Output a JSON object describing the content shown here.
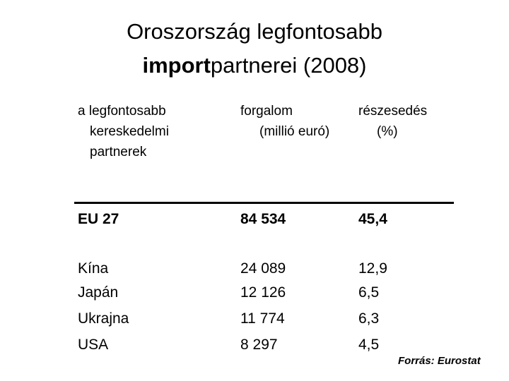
{
  "title": {
    "line1": "Oroszország legfontosabb",
    "line2_bold": "import",
    "line2_rest": "partnerei (2008)"
  },
  "table": {
    "header": [
      [
        "a legfontosabb",
        "kereskedelmi",
        "partnerek"
      ],
      [
        "forgalom",
        "(millió euró)"
      ],
      [
        "részesedés",
        "(%)"
      ]
    ],
    "rows": [
      [
        "EU 27",
        "84 534",
        "45,4"
      ],
      [
        "Kína",
        "24 089",
        "12,9"
      ],
      [
        "Japán",
        "12 126",
        "6,5"
      ],
      [
        "Ukrajna",
        "11 774",
        "6,3"
      ],
      [
        "USA",
        "8 297",
        "4,5"
      ]
    ]
  },
  "source": "Forrás: Eurostat"
}
